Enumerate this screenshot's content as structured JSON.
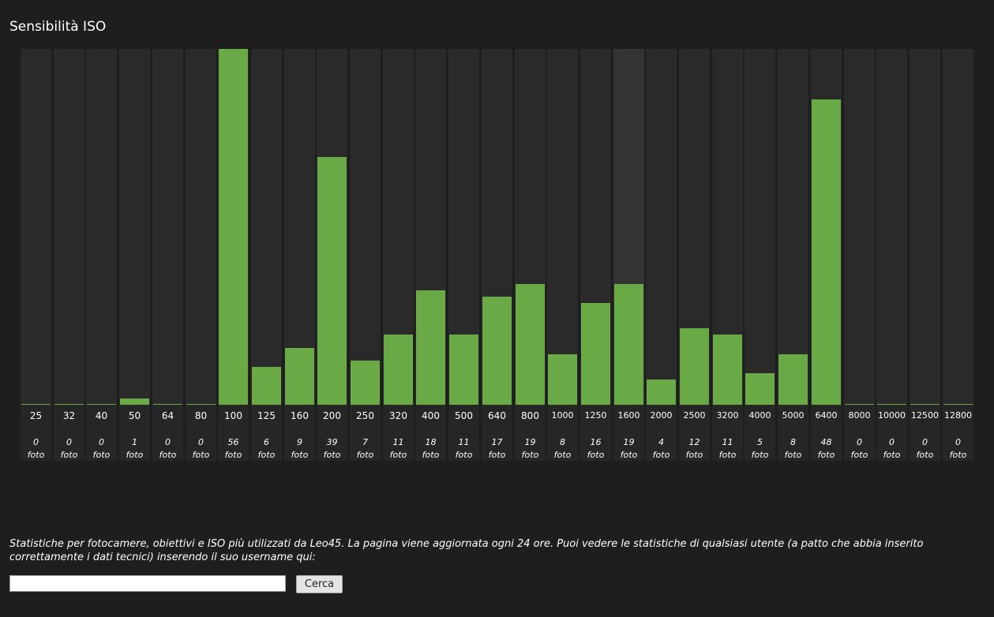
{
  "page": {
    "title": "Sensibilità ISO"
  },
  "colors": {
    "bar": "#6aaa46",
    "track": "#2a2a2a",
    "track_highlight": "#333533",
    "background": "#1e1e1e"
  },
  "chart_data": {
    "type": "bar",
    "title": "Sensibilità ISO",
    "xlabel": "",
    "ylabel": "",
    "categories": [
      "25",
      "32",
      "40",
      "50",
      "64",
      "80",
      "100",
      "125",
      "160",
      "200",
      "250",
      "320",
      "400",
      "500",
      "640",
      "800",
      "1000",
      "1250",
      "1600",
      "2000",
      "2500",
      "3200",
      "4000",
      "5000",
      "6400",
      "8000",
      "10000",
      "12500",
      "12800"
    ],
    "values": [
      0,
      0,
      0,
      1,
      0,
      0,
      56,
      6,
      9,
      39,
      7,
      11,
      18,
      11,
      17,
      19,
      8,
      16,
      19,
      4,
      12,
      11,
      5,
      8,
      48,
      0,
      0,
      0,
      0
    ],
    "count_labels": [
      "0",
      "0",
      "0",
      "1",
      "0",
      "0",
      "56",
      "6",
      "9",
      "39",
      "7",
      "11",
      "18",
      "11",
      "17",
      "19",
      "8",
      "16",
      "19",
      "4",
      "12",
      "11",
      "5",
      "8",
      "48",
      "0",
      "0",
      "0",
      "0"
    ],
    "unit_label": "foto",
    "ylim": [
      0,
      56
    ],
    "grid": false,
    "highlighted_category": "1600"
  },
  "footer": {
    "description": "Statistiche per fotocamere, obiettivi e ISO più utilizzati da Leo45. La pagina viene aggiornata ogni 24 ore. Puoi vedere le statistiche di qualsiasi utente (a patto che abbia inserito correttamente i dati tecnici) inserendo il suo username qui:",
    "search_value": "",
    "search_placeholder": "",
    "button_label": "Cerca"
  }
}
